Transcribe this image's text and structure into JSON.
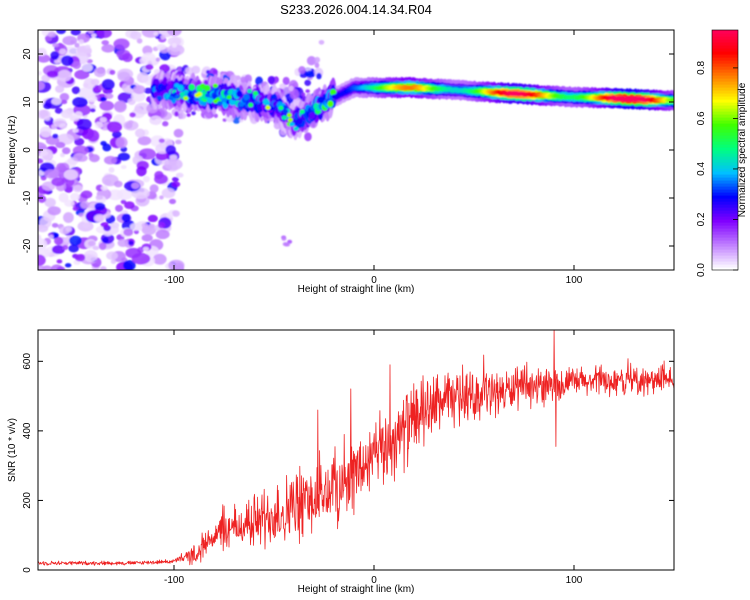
{
  "title": "S233.2026.004.14.34.R04",
  "chart_data": [
    {
      "type": "heatmap",
      "name": "spectrogram",
      "xlabel": "Height of straight line (km)",
      "ylabel": "Frequency (Hz)",
      "xlim": [
        -168,
        150
      ],
      "ylim": [
        -25,
        25
      ],
      "xticks": [
        -100,
        0,
        100
      ],
      "yticks": [
        -20,
        -10,
        0,
        10,
        20
      ],
      "colorbar": {
        "label": "Normalized spectral amplitude",
        "range": [
          0,
          0.95
        ],
        "ticks": [
          0.0,
          0.2,
          0.4,
          0.6,
          0.8
        ],
        "colors": [
          "#ffffff",
          "#c080ff",
          "#8000ff",
          "#0000ff",
          "#00c0ff",
          "#00ff80",
          "#40ff00",
          "#ffff00",
          "#ff8000",
          "#ff0000",
          "#ff0060"
        ]
      },
      "ridge": {
        "x": [
          -110,
          -95,
          -80,
          -65,
          -50,
          -40,
          -35,
          -30,
          -20,
          -10,
          0,
          10,
          20,
          40,
          60,
          80,
          100,
          120,
          140,
          150
        ],
        "y": [
          12.5,
          12,
          11.5,
          10.5,
          9.5,
          6,
          7,
          8.5,
          11,
          13,
          13,
          13,
          13,
          12.5,
          12,
          11.5,
          11,
          10.8,
          10.4,
          10.3
        ],
        "amp": [
          0.3,
          0.35,
          0.4,
          0.3,
          0.3,
          0.25,
          0.3,
          0.35,
          0.45,
          0.55,
          0.55,
          0.6,
          0.7,
          0.75,
          0.8,
          0.85,
          0.9,
          0.9,
          0.95,
          0.95
        ]
      }
    },
    {
      "type": "line",
      "name": "snr",
      "xlabel": "Height of straight line (km)",
      "ylabel": "SNR (10 * v/v)",
      "xlim": [
        -168,
        150
      ],
      "ylim": [
        0,
        690
      ],
      "xticks": [
        -100,
        0,
        100
      ],
      "yticks": [
        0,
        200,
        400,
        600
      ],
      "color": "#ee2222",
      "trend_x": [
        -168,
        -120,
        -100,
        -90,
        -80,
        -60,
        -40,
        -20,
        0,
        20,
        30,
        60,
        100,
        150
      ],
      "trend_y": [
        20,
        20,
        25,
        45,
        100,
        140,
        180,
        230,
        320,
        430,
        480,
        510,
        540,
        545
      ],
      "noise_x": [
        -168,
        -100,
        -85,
        -40,
        0,
        20,
        40,
        100,
        150
      ],
      "noise_y": [
        6,
        6,
        40,
        110,
        110,
        110,
        75,
        45,
        40
      ],
      "spikes": [
        {
          "x": 90,
          "y": 690
        },
        {
          "x": 8,
          "y": 590
        },
        {
          "x": -28,
          "y": 460
        },
        {
          "x": 91,
          "y": 355
        }
      ]
    }
  ]
}
